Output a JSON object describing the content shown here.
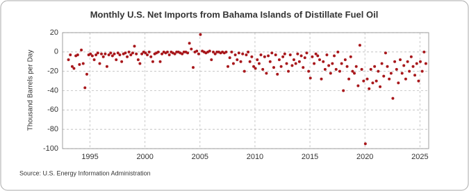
{
  "chart_data": {
    "type": "scatter",
    "title": "Monthly U.S. Net Imports from Bahama Islands of Distillate Fuel Oil",
    "y_label": "Thousand Barrels per Day",
    "source": "Source: U.S. Energy Information Administration",
    "color": "#a8181c",
    "grid": true,
    "xlim": [
      1992.5,
      2025.8
    ],
    "xticks": [
      1995,
      2000,
      2005,
      2010,
      2015,
      2020,
      2025
    ],
    "ylim": [
      -100,
      20
    ],
    "yticks": [
      -100,
      -80,
      -60,
      -40,
      -20,
      0,
      20
    ],
    "x": [
      1993.04,
      1993.21,
      1993.38,
      1993.54,
      1993.71,
      1993.88,
      1994.04,
      1994.21,
      1994.38,
      1994.54,
      1994.71,
      1994.88,
      1995.04,
      1995.21,
      1995.38,
      1995.54,
      1995.71,
      1995.88,
      1996.04,
      1996.21,
      1996.38,
      1996.54,
      1996.71,
      1996.88,
      1997.04,
      1997.21,
      1997.38,
      1997.54,
      1997.71,
      1997.88,
      1998.04,
      1998.21,
      1998.38,
      1998.54,
      1998.71,
      1998.88,
      1999.04,
      1999.21,
      1999.38,
      1999.54,
      1999.71,
      1999.88,
      2000.04,
      2000.21,
      2000.38,
      2000.54,
      2000.71,
      2000.88,
      2001.04,
      2001.21,
      2001.38,
      2001.54,
      2001.71,
      2001.88,
      2002.04,
      2002.21,
      2002.38,
      2002.54,
      2002.71,
      2002.88,
      2003.04,
      2003.21,
      2003.38,
      2003.54,
      2003.71,
      2003.88,
      2004.04,
      2004.21,
      2004.38,
      2004.54,
      2004.71,
      2004.88,
      2005.04,
      2005.21,
      2005.38,
      2005.54,
      2005.71,
      2005.88,
      2006.04,
      2006.21,
      2006.38,
      2006.54,
      2006.71,
      2006.88,
      2007.04,
      2007.21,
      2007.38,
      2007.54,
      2007.71,
      2007.88,
      2008.04,
      2008.21,
      2008.38,
      2008.54,
      2008.71,
      2008.88,
      2009.04,
      2009.21,
      2009.38,
      2009.54,
      2009.71,
      2009.88,
      2010.04,
      2010.21,
      2010.38,
      2010.54,
      2010.71,
      2010.88,
      2011.04,
      2011.21,
      2011.38,
      2011.54,
      2011.71,
      2011.88,
      2012.04,
      2012.21,
      2012.38,
      2012.54,
      2012.71,
      2012.88,
      2013.04,
      2013.21,
      2013.38,
      2013.54,
      2013.71,
      2013.88,
      2014.04,
      2014.21,
      2014.38,
      2014.54,
      2014.71,
      2014.88,
      2015.04,
      2015.21,
      2015.38,
      2015.54,
      2015.71,
      2015.88,
      2016.04,
      2016.21,
      2016.38,
      2016.54,
      2016.71,
      2016.88,
      2017.04,
      2017.21,
      2017.38,
      2017.54,
      2017.71,
      2017.88,
      2018.04,
      2018.21,
      2018.38,
      2018.54,
      2018.71,
      2018.88,
      2019.04,
      2019.21,
      2019.38,
      2019.54,
      2019.71,
      2019.88,
      2020.04,
      2020.21,
      2020.38,
      2020.54,
      2020.71,
      2020.88,
      2021.04,
      2021.21,
      2021.38,
      2021.54,
      2021.71,
      2021.88,
      2022.04,
      2022.21,
      2022.38,
      2022.54,
      2022.71,
      2022.88,
      2023.04,
      2023.21,
      2023.38,
      2023.54,
      2023.71,
      2023.88,
      2024.04,
      2024.21,
      2024.38,
      2024.54,
      2024.71,
      2024.88,
      2025.04,
      2025.21,
      2025.38,
      2025.54
    ],
    "values": [
      -8,
      -3,
      -15,
      -17,
      -4,
      -3,
      -13,
      2,
      -12,
      -37,
      -23,
      -3,
      -2,
      -4,
      -8,
      -3,
      -1,
      -12,
      -2,
      -5,
      -2,
      -15,
      -3,
      -1,
      -4,
      -2,
      -8,
      -1,
      -3,
      -10,
      -2,
      -1,
      -5,
      0,
      -3,
      -1,
      6,
      -2,
      -8,
      -12,
      -2,
      0,
      -1,
      -3,
      0,
      -5,
      -10,
      -2,
      -1,
      0,
      -10,
      -2,
      0,
      -1,
      0,
      -3,
      0,
      -1,
      -2,
      0,
      0,
      -1,
      -2,
      0,
      0,
      -1,
      9,
      3,
      -16,
      0,
      1,
      -2,
      18,
      1,
      0,
      -1,
      0,
      1,
      -8,
      0,
      -2,
      0,
      0,
      -1,
      0,
      -1,
      0,
      -15,
      -6,
      0,
      -12,
      -3,
      -8,
      -1,
      -10,
      -2,
      -20,
      -3,
      0,
      -10,
      -5,
      -15,
      -17,
      -8,
      -12,
      -3,
      -18,
      -5,
      -22,
      -4,
      -10,
      -1,
      -16,
      -3,
      -23,
      -8,
      -15,
      -5,
      -2,
      -12,
      -20,
      -3,
      -14,
      -8,
      -12,
      -2,
      -10,
      -4,
      -16,
      -6,
      -1,
      -20,
      -27,
      -5,
      -12,
      -2,
      -4,
      -8,
      -28,
      -10,
      -18,
      -3,
      -14,
      -22,
      -12,
      -4,
      -18,
      0,
      -20,
      -12,
      -40,
      -8,
      -15,
      -28,
      -5,
      -20,
      -22,
      -15,
      -35,
      7,
      -18,
      -30,
      -95,
      -28,
      -38,
      -18,
      -32,
      -15,
      -30,
      -20,
      -36,
      -12,
      -25,
      -1,
      -15,
      -28,
      -22,
      -48,
      -10,
      -18,
      -32,
      -8,
      -22,
      -14,
      -28,
      -10,
      -20,
      -5,
      -15,
      -24,
      -12,
      -30,
      -10,
      -20,
      0,
      -12
    ]
  }
}
